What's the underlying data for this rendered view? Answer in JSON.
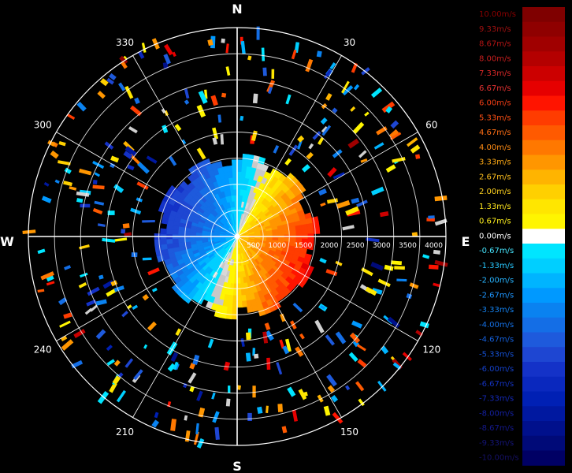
{
  "chart_data": {
    "type": "heatmap",
    "subtype": "polar-ppi-radial-velocity",
    "compass": {
      "north": "N",
      "east": "E",
      "south": "S",
      "west": "W"
    },
    "azimuth_labels": [
      "30",
      "60",
      "120",
      "150",
      "210",
      "240",
      "300",
      "330"
    ],
    "range_ring_labels": [
      "500",
      "1000",
      "1500",
      "2000",
      "2500",
      "3000",
      "3500",
      "4000"
    ],
    "range_max": 4000,
    "colorbar": {
      "unit": "m/s",
      "ticks": [
        "10.00m/s",
        "9.33m/s",
        "8.67m/s",
        "8.00m/s",
        "7.33m/s",
        "6.67m/s",
        "6.00m/s",
        "5.33m/s",
        "4.67m/s",
        "4.00m/s",
        "3.33m/s",
        "2.67m/s",
        "2.00m/s",
        "1.33m/s",
        "0.67m/s",
        "0.00m/s",
        "-0.67m/s",
        "-1.33m/s",
        "-2.00m/s",
        "-2.67m/s",
        "-3.33m/s",
        "-4.00m/s",
        "-4.67m/s",
        "-5.33m/s",
        "-6.00m/s",
        "-6.67m/s",
        "-7.33m/s",
        "-8.00m/s",
        "-8.67m/s",
        "-9.33m/s",
        "-10.00m/s"
      ],
      "colors": [
        "#7f0000",
        "#8f0000",
        "#a00000",
        "#b40000",
        "#cc0000",
        "#e60000",
        "#ff1400",
        "#ff3c00",
        "#ff5a00",
        "#ff7800",
        "#ff9600",
        "#ffb400",
        "#ffd000",
        "#ffe600",
        "#fff500",
        "#ffffff",
        "#00e5ff",
        "#00cfff",
        "#00b4ff",
        "#0099ff",
        "#0a82f0",
        "#146ee6",
        "#1e5adc",
        "#1e46d2",
        "#1432c8",
        "#0a28be",
        "#0020b4",
        "#0018a0",
        "#00108c",
        "#000a78",
        "#000064"
      ],
      "label_colors": [
        "#8b0000",
        "#a01010",
        "#b41414",
        "#c81e1e",
        "#dc2828",
        "#e63232",
        "#f03c14",
        "#ff5014",
        "#ff6e14",
        "#ff8c14",
        "#ffaa14",
        "#ffc01e",
        "#ffd21e",
        "#ffe61e",
        "#fff01e",
        "#ffffff",
        "#46e6ff",
        "#28c8ff",
        "#28b4ff",
        "#1e96ff",
        "#1482f0",
        "#1470e6",
        "#1460dc",
        "#1450d2",
        "#1440c8",
        "#1432be",
        "#1428b4",
        "#1420a0",
        "#14188c",
        "#141478",
        "#141064"
      ]
    },
    "doppler_field": {
      "description_free_note": "",
      "inbound_color": "blue",
      "outbound_color": "red"
    }
  }
}
